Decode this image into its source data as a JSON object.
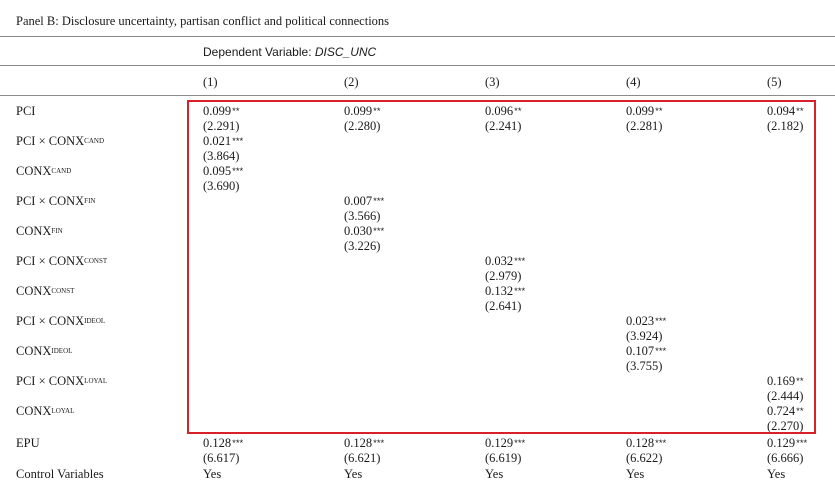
{
  "panel_title": "Panel B: Disclosure uncertainty, partisan conflict and political connections",
  "dependent_variable": {
    "label": "Dependent Variable: ",
    "name": "DISC_UNC"
  },
  "columns": [
    "(1)",
    "(2)",
    "(3)",
    "(4)",
    "(5)"
  ],
  "rows": [
    {
      "label": "PCI × CONX",
      "sup": "",
      "cells": [],
      "id": "pci"
    },
    {
      "label": "PCI × CONX",
      "sup": "CAND"
    },
    {
      "label": "CONX",
      "sup": "CAND"
    },
    {
      "label": "PCI × CONX",
      "sup": "FIN"
    },
    {
      "label": "CONX",
      "sup": "FIN"
    },
    {
      "label": "PCI × CONX",
      "sup": "CONST"
    },
    {
      "label": "CONX",
      "sup": "CONST"
    },
    {
      "label": "PCI × CONX",
      "sup": "IDEOL"
    },
    {
      "label": "CONX",
      "sup": "IDEOL"
    },
    {
      "label": "PCI × CONX",
      "sup": "LOYAL"
    },
    {
      "label": "CONX",
      "sup": "LOYAL"
    },
    {
      "label": "EPU",
      "sup": ""
    },
    {
      "label": "Control Variables",
      "sup": ""
    }
  ],
  "row_labels": {
    "pci": "PCI",
    "pci_cand": "PCI × CONX",
    "pci_cand_sup": "CAND",
    "conx_cand": "CONX",
    "conx_cand_sup": "CAND",
    "pci_fin": "PCI × CONX",
    "pci_fin_sup": "FIN",
    "conx_fin": "CONX",
    "conx_fin_sup": "FIN",
    "pci_const": "PCI × CONX",
    "pci_const_sup": "CONST",
    "conx_const": "CONX",
    "conx_const_sup": "CONST",
    "pci_ideol": "PCI × CONX",
    "pci_ideol_sup": "IDEOL",
    "conx_ideol": "CONX",
    "conx_ideol_sup": "IDEOL",
    "pci_loyal": "PCI × CONX",
    "pci_loyal_sup": "LOYAL",
    "conx_loyal": "CONX",
    "conx_loyal_sup": "LOYAL",
    "epu": "EPU",
    "controls": "Control Variables"
  },
  "cells": {
    "pci": [
      [
        "0.099",
        "**",
        "(2.291)"
      ],
      [
        "0.099",
        "**",
        "(2.280)"
      ],
      [
        "0.096",
        "**",
        "(2.241)"
      ],
      [
        "0.099",
        "**",
        "(2.281)"
      ],
      [
        "0.094",
        "**",
        "(2.182)"
      ]
    ],
    "pci_cand": [
      [
        "0.021",
        "***",
        "(3.864)"
      ]
    ],
    "conx_cand": [
      [
        "0.095",
        "***",
        "(3.690)"
      ]
    ],
    "pci_fin": [
      [
        "0.007",
        "***",
        "(3.566)"
      ]
    ],
    "conx_fin": [
      [
        "0.030",
        "***",
        "(3.226)"
      ]
    ],
    "pci_const": [
      [
        "0.032",
        "***",
        "(2.979)"
      ]
    ],
    "conx_const": [
      [
        "0.132",
        "***",
        "(2.641)"
      ]
    ],
    "pci_ideol": [
      [
        "0.023",
        "***",
        "(3.924)"
      ]
    ],
    "conx_ideol": [
      [
        "0.107",
        "***",
        "(3.755)"
      ]
    ],
    "pci_loyal": [
      [
        "0.169",
        "**",
        "(2.444)"
      ]
    ],
    "conx_loyal": [
      [
        "0.724",
        "**",
        "(2.270)"
      ]
    ],
    "epu": [
      [
        "0.128",
        "***",
        "(6.617)"
      ],
      [
        "0.128",
        "***",
        "(6.621)"
      ],
      [
        "0.129",
        "***",
        "(6.619)"
      ],
      [
        "0.128",
        "***",
        "(6.622)"
      ],
      [
        "0.129",
        "***",
        "(6.666)"
      ]
    ],
    "controls": [
      "Yes",
      "Yes",
      "Yes",
      "Yes",
      "Yes"
    ]
  },
  "highlight_color": "#d9202a"
}
